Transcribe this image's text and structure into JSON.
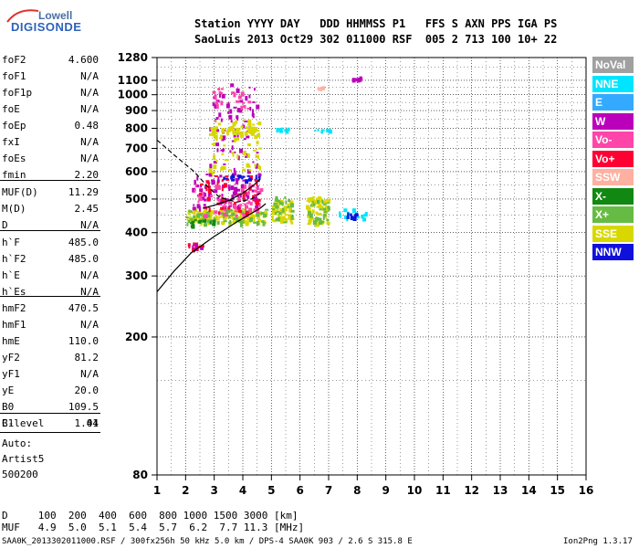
{
  "logo": {
    "brand_top": "Lowell",
    "brand_bottom": "DIGISONDE"
  },
  "header": {
    "line1": "Station YYYY DAY   DDD HHMMSS P1   FFS S AXN PPS IGA PS",
    "line2": "SaoLuis 2013 Oct29 302 011000 RSF  005 2 713 100 10+ 22"
  },
  "params": [
    {
      "key": "foF2",
      "value": "4.600"
    },
    {
      "key": "foF1",
      "value": "N/A"
    },
    {
      "key": "foF1p",
      "value": "N/A"
    },
    {
      "key": "foE",
      "value": "N/A"
    },
    {
      "key": "foEp",
      "value": "0.48"
    },
    {
      "key": "fxI",
      "value": "N/A"
    },
    {
      "key": "foEs",
      "value": "N/A"
    },
    {
      "key": "fmin",
      "value": "2.20"
    },
    {
      "key": "MUF(D)",
      "value": "11.29"
    },
    {
      "key": "M(D)",
      "value": "2.45"
    },
    {
      "key": "D",
      "value": "N/A"
    },
    {
      "key": "h`F",
      "value": "485.0"
    },
    {
      "key": "h`F2",
      "value": "485.0"
    },
    {
      "key": "h`E",
      "value": "N/A"
    },
    {
      "key": "h`Es",
      "value": "N/A"
    },
    {
      "key": "hmF2",
      "value": "470.5"
    },
    {
      "key": "hmF1",
      "value": "N/A"
    },
    {
      "key": "hmE",
      "value": "110.0"
    },
    {
      "key": "yF2",
      "value": "81.2"
    },
    {
      "key": "yF1",
      "value": "N/A"
    },
    {
      "key": "yE",
      "value": "20.0"
    },
    {
      "key": "B0",
      "value": "109.5"
    },
    {
      "key": "B1",
      "value": "1.01"
    },
    {
      "key": "C-level",
      "value": "44"
    }
  ],
  "autoscaling": {
    "line1": "Auto:",
    "line2": "Artist5",
    "line3": "500200"
  },
  "legend": [
    {
      "label": "NoVal",
      "color": "#a0a0a0"
    },
    {
      "label": "NNE",
      "color": "#00e5ff"
    },
    {
      "label": "E",
      "color": "#33aaff"
    },
    {
      "label": "W",
      "color": "#bb00bb"
    },
    {
      "label": "Vo-",
      "color": "#ff44aa"
    },
    {
      "label": "Vo+",
      "color": "#ff0033"
    },
    {
      "label": "SSW",
      "color": "#ffb0a0"
    },
    {
      "label": "X-",
      "color": "#118811"
    },
    {
      "label": "X+",
      "color": "#66bb44"
    },
    {
      "label": "SSE",
      "color": "#d8d800"
    },
    {
      "label": "NNW",
      "color": "#1010dd"
    }
  ],
  "muf_table": {
    "d_row": "D     100  200  400  600  800 1000 1500 3000 [km]",
    "muf_row": "MUF   4.9  5.0  5.1  5.4  5.7  6.2  7.7 11.3 [MHz]"
  },
  "footer": {
    "left": "SAA0K_2013302011000.RSF / 300fx256h 50 kHz 5.0 km / DPS-4 SAA0K 903 / 2.6 S 315.8 E",
    "right": "Ion2Png 1.3.17"
  },
  "chart_data": {
    "type": "scatter",
    "title": "",
    "xlabel": "",
    "ylabel": "",
    "xlim": [
      1,
      16
    ],
    "ylim": [
      80,
      1280
    ],
    "x_ticks": [
      1,
      2,
      3,
      4,
      5,
      6,
      7,
      8,
      9,
      10,
      11,
      12,
      13,
      14,
      15,
      16
    ],
    "y_ticks": [
      80,
      200,
      300,
      400,
      500,
      600,
      700,
      800,
      900,
      1000,
      1100,
      1280
    ],
    "y_scale": "log",
    "grid": true,
    "ionogram_clusters": [
      {
        "series": "SSE",
        "x_range": [
          2.0,
          4.8
        ],
        "y_range": [
          430,
          470
        ],
        "count": 140
      },
      {
        "series": "X+",
        "x_range": [
          2.0,
          4.8
        ],
        "y_range": [
          425,
          470
        ],
        "count": 60
      },
      {
        "series": "X-",
        "x_range": [
          2.0,
          3.0
        ],
        "y_range": [
          420,
          440
        ],
        "count": 15
      },
      {
        "series": "W",
        "x_range": [
          2.2,
          4.6
        ],
        "y_range": [
          470,
          600
        ],
        "count": 90
      },
      {
        "series": "Vo-",
        "x_range": [
          2.2,
          4.6
        ],
        "y_range": [
          450,
          560
        ],
        "count": 70
      },
      {
        "series": "Vo+",
        "x_range": [
          2.4,
          4.6
        ],
        "y_range": [
          460,
          590
        ],
        "count": 50
      },
      {
        "series": "NNW",
        "x_range": [
          3.2,
          4.6
        ],
        "y_range": [
          570,
          590
        ],
        "count": 20
      },
      {
        "series": "W",
        "x_range": [
          2.8,
          4.5
        ],
        "y_range": [
          600,
          1080
        ],
        "count": 80
      },
      {
        "series": "SSE",
        "x_range": [
          2.8,
          4.6
        ],
        "y_range": [
          600,
          850
        ],
        "count": 70
      },
      {
        "series": "Vo-",
        "x_range": [
          2.9,
          4.2
        ],
        "y_range": [
          880,
          1050
        ],
        "count": 20
      },
      {
        "series": "SSE",
        "x_range": [
          2.8,
          4.5
        ],
        "y_range": [
          780,
          810
        ],
        "count": 40
      },
      {
        "series": "SSE",
        "x_range": [
          5.0,
          5.7
        ],
        "y_range": [
          430,
          500
        ],
        "count": 60
      },
      {
        "series": "X+",
        "x_range": [
          5.0,
          5.7
        ],
        "y_range": [
          430,
          510
        ],
        "count": 25
      },
      {
        "series": "NNE",
        "x_range": [
          5.0,
          5.6
        ],
        "y_range": [
          790,
          805
        ],
        "count": 12
      },
      {
        "series": "SSE",
        "x_range": [
          6.2,
          7.0
        ],
        "y_range": [
          425,
          510
        ],
        "count": 80
      },
      {
        "series": "X+",
        "x_range": [
          6.2,
          7.0
        ],
        "y_range": [
          430,
          500
        ],
        "count": 25
      },
      {
        "series": "NNE",
        "x_range": [
          6.5,
          7.0
        ],
        "y_range": [
          790,
          800
        ],
        "count": 10
      },
      {
        "series": "NNE",
        "x_range": [
          7.3,
          8.3
        ],
        "y_range": [
          440,
          470
        ],
        "count": 20
      },
      {
        "series": "NNW",
        "x_range": [
          7.6,
          8.0
        ],
        "y_range": [
          445,
          460
        ],
        "count": 8
      },
      {
        "series": "W",
        "x_range": [
          7.8,
          8.1
        ],
        "y_range": [
          1110,
          1135
        ],
        "count": 10
      },
      {
        "series": "SSW",
        "x_range": [
          6.6,
          6.8
        ],
        "y_range": [
          1045,
          1065
        ],
        "count": 6
      },
      {
        "series": "Vo+",
        "x_range": [
          2.0,
          2.6
        ],
        "y_range": [
          360,
          375
        ],
        "count": 8
      },
      {
        "series": "W",
        "x_range": [
          2.2,
          2.6
        ],
        "y_range": [
          360,
          375
        ],
        "count": 6
      }
    ],
    "curves": [
      {
        "style": "solid",
        "points": [
          [
            1.0,
            270
          ],
          [
            1.6,
            310
          ],
          [
            2.2,
            350
          ],
          [
            3.0,
            390
          ],
          [
            3.8,
            430
          ],
          [
            4.6,
            470
          ],
          [
            4.8,
            485
          ]
        ]
      },
      {
        "style": "dashed",
        "points": [
          [
            1.0,
            740
          ],
          [
            1.6,
            670
          ],
          [
            2.3,
            600
          ],
          [
            2.8,
            540
          ],
          [
            3.2,
            505
          ],
          [
            3.8,
            490
          ],
          [
            4.3,
            500
          ],
          [
            4.6,
            520
          ]
        ]
      },
      {
        "style": "solid",
        "points": [
          [
            2.6,
            470
          ],
          [
            3.0,
            480
          ],
          [
            3.5,
            495
          ],
          [
            4.0,
            520
          ],
          [
            4.4,
            550
          ],
          [
            4.6,
            570
          ]
        ]
      }
    ]
  }
}
